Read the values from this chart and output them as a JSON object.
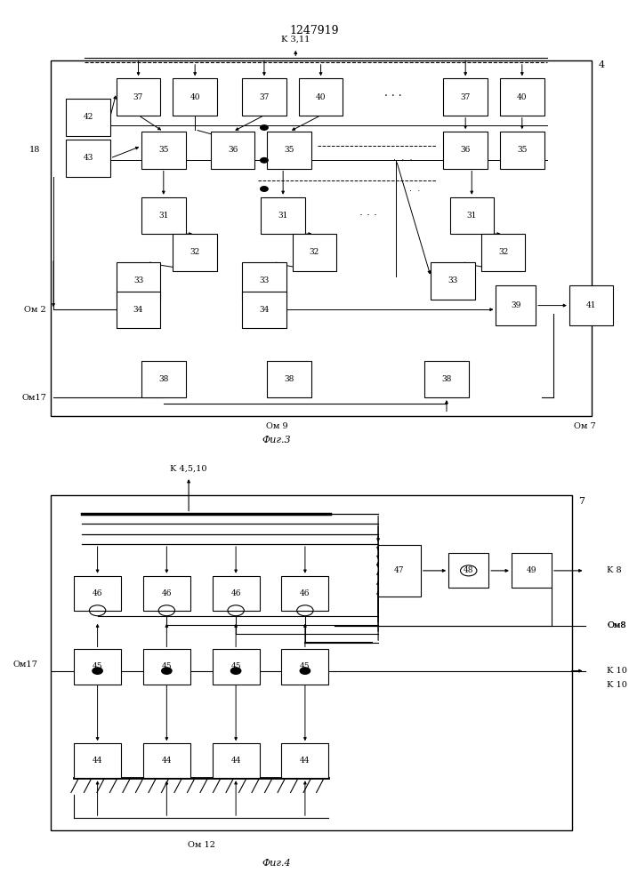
{
  "title": "1247919",
  "fig3_label": "Фиг.3",
  "fig4_label": "Фиг.4",
  "bg_color": "#ffffff",
  "fig3": {
    "border_num": "4",
    "label_K3_11": "K 3,11",
    "label_18": "18",
    "label_Om2": "Ом 2",
    "label_Om17": "Ом17",
    "label_Om9": "Ом 9",
    "label_Om7": "Ом 7"
  },
  "fig4": {
    "border_num": "7",
    "label_K4_5_10": "K 4,5,10",
    "label_Om17": "Ом17",
    "label_Om8": "Ом8",
    "label_K8": "K 8",
    "label_K10": "K 10",
    "label_Om12": "Ом 12"
  }
}
